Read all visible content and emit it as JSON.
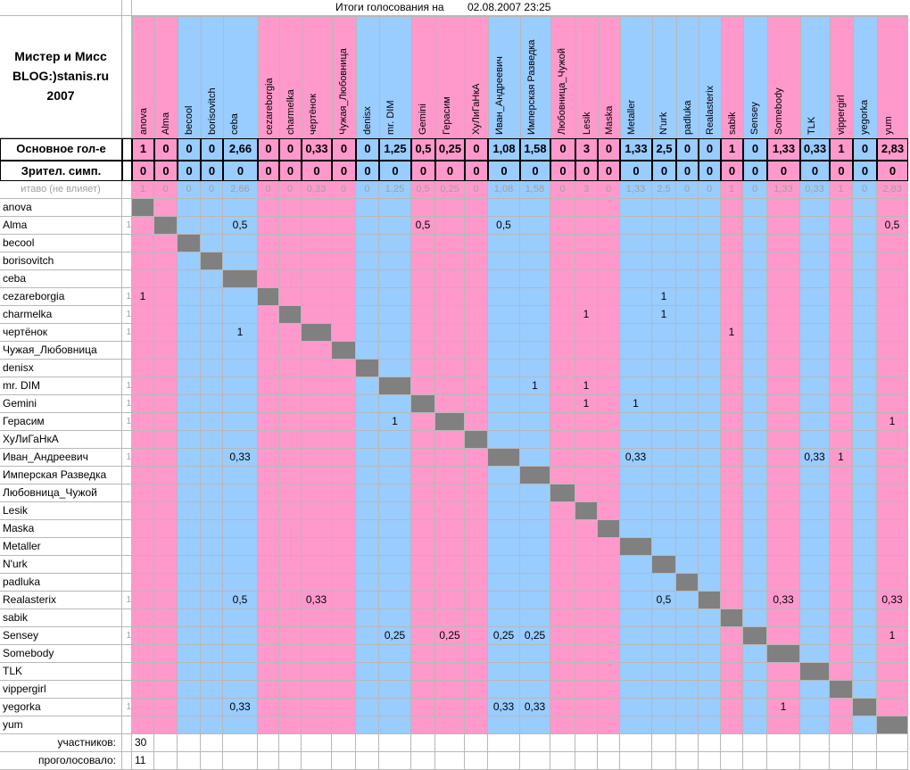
{
  "header": {
    "title": "Итоги голосования на",
    "timestamp": "02.08.2007 23:25",
    "caption": [
      "Мистер и Мисс",
      "BLOG:)stanis.ru",
      "2007"
    ]
  },
  "columns": [
    {
      "name": "anova",
      "color": "#ff99cc"
    },
    {
      "name": "Alma",
      "color": "#ff99cc"
    },
    {
      "name": "becool",
      "color": "#99ccff"
    },
    {
      "name": "borisovitch",
      "color": "#99ccff"
    },
    {
      "name": "ceba",
      "color": "#99ccff"
    },
    {
      "name": "cezareborgia",
      "color": "#ff99cc"
    },
    {
      "name": "charmelka",
      "color": "#ff99cc"
    },
    {
      "name": "чертёнок",
      "color": "#ff99cc"
    },
    {
      "name": "Чужая_Любовница",
      "color": "#ff99cc"
    },
    {
      "name": "denisx",
      "color": "#99ccff"
    },
    {
      "name": "mr. DIM",
      "color": "#99ccff"
    },
    {
      "name": "Gemini",
      "color": "#ff99cc"
    },
    {
      "name": "Герасим",
      "color": "#ff99cc"
    },
    {
      "name": "ХуЛиГаНкА",
      "color": "#ff99cc"
    },
    {
      "name": "Иван_Андреевич",
      "color": "#99ccff"
    },
    {
      "name": "Имперская Разведка",
      "color": "#99ccff"
    },
    {
      "name": "Любовница_Чужой",
      "color": "#ff99cc"
    },
    {
      "name": "Lesik",
      "color": "#ff99cc"
    },
    {
      "name": "Maska",
      "color": "#ff99cc"
    },
    {
      "name": "Metaller",
      "color": "#99ccff"
    },
    {
      "name": "N'urk",
      "color": "#99ccff"
    },
    {
      "name": "padluka",
      "color": "#99ccff"
    },
    {
      "name": "Realasterix",
      "color": "#99ccff"
    },
    {
      "name": "sabik",
      "color": "#ff99cc"
    },
    {
      "name": "Sensey",
      "color": "#99ccff"
    },
    {
      "name": "Somebody",
      "color": "#ff99cc"
    },
    {
      "name": "TLK",
      "color": "#99ccff"
    },
    {
      "name": "vippergirl",
      "color": "#ff99cc"
    },
    {
      "name": "yegorka",
      "color": "#99ccff"
    },
    {
      "name": "yum",
      "color": "#ff99cc"
    }
  ],
  "summary": [
    {
      "label": "Основное гол-е",
      "values": [
        1,
        0,
        0,
        0,
        "2,66",
        0,
        0,
        "0,33",
        0,
        0,
        "1,25",
        "0,5",
        "0,25",
        0,
        "1,08",
        "1,58",
        0,
        3,
        0,
        "1,33",
        "2,5",
        0,
        0,
        1,
        0,
        "1,33",
        "0,33",
        1,
        0,
        "2,83"
      ]
    },
    {
      "label": "Зрител. симп.",
      "values": [
        0,
        0,
        0,
        0,
        0,
        0,
        0,
        0,
        0,
        0,
        0,
        0,
        0,
        0,
        0,
        0,
        0,
        0,
        0,
        0,
        0,
        0,
        0,
        0,
        0,
        0,
        0,
        0,
        0,
        0
      ]
    },
    {
      "label": "итаво (не влияет)",
      "values": [
        1,
        0,
        0,
        0,
        "2,66",
        0,
        0,
        "0,33",
        0,
        0,
        "1,25",
        "0,5",
        "0,25",
        0,
        "1,08",
        "1,58",
        0,
        3,
        0,
        "1,33",
        "2,5",
        0,
        0,
        1,
        0,
        "1,33",
        "0,33",
        1,
        0,
        "2,83"
      ]
    }
  ],
  "rows": [
    {
      "name": "anova"
    },
    {
      "name": "Alma",
      "marker": 1,
      "votes": {
        "4": "0,5",
        "11": "0,5",
        "14": "0,5",
        "29": "0,5"
      }
    },
    {
      "name": "becool"
    },
    {
      "name": "borisovitch"
    },
    {
      "name": "ceba"
    },
    {
      "name": "cezareborgia",
      "marker": 1,
      "votes": {
        "0": 1,
        "20": 1
      }
    },
    {
      "name": "charmelka",
      "marker": 1,
      "votes": {
        "17": 1,
        "20": 1
      }
    },
    {
      "name": "чертёнок",
      "marker": 1,
      "votes": {
        "4": 1,
        "23": 1
      }
    },
    {
      "name": "Чужая_Любовница"
    },
    {
      "name": "denisx"
    },
    {
      "name": "mr. DIM",
      "marker": 1,
      "votes": {
        "15": 1,
        "17": 1
      }
    },
    {
      "name": "Gemini",
      "marker": 1,
      "votes": {
        "17": 1,
        "19": 1
      }
    },
    {
      "name": "Герасим",
      "marker": 1,
      "votes": {
        "10": 1,
        "29": 1
      }
    },
    {
      "name": "ХуЛиГаНкА"
    },
    {
      "name": "Иван_Андреевич",
      "marker": 1,
      "votes": {
        "4": "0,33",
        "19": "0,33",
        "26": "0,33",
        "27": 1
      }
    },
    {
      "name": "Имперская Разведка"
    },
    {
      "name": "Любовница_Чужой"
    },
    {
      "name": "Lesik"
    },
    {
      "name": "Maska"
    },
    {
      "name": "Metaller"
    },
    {
      "name": "N'urk"
    },
    {
      "name": "padluka"
    },
    {
      "name": "Realasterix",
      "marker": 1,
      "votes": {
        "4": "0,5",
        "7": "0,33",
        "20": "0,5",
        "25": "0,33",
        "29": "0,33"
      }
    },
    {
      "name": "sabik"
    },
    {
      "name": "Sensey",
      "marker": 1,
      "votes": {
        "10": "0,25",
        "12": "0,25",
        "14": "0,25",
        "15": "0,25",
        "29": 1
      }
    },
    {
      "name": "Somebody"
    },
    {
      "name": "TLK"
    },
    {
      "name": "vippergirl"
    },
    {
      "name": "yegorka",
      "marker": 1,
      "votes": {
        "4": "0,33",
        "14": "0,33",
        "15": "0,33",
        "25": 1
      }
    },
    {
      "name": "yum"
    }
  ],
  "footer": [
    {
      "label": "участников:",
      "value": 30
    },
    {
      "label": "проголосовало:",
      "value": 11
    }
  ]
}
